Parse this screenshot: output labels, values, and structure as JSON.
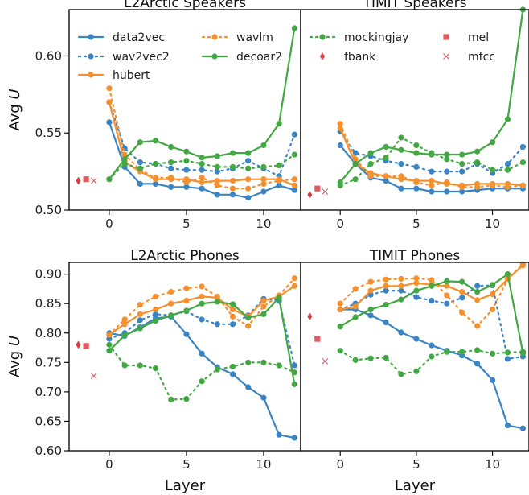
{
  "chart_data": [
    {
      "type": "line",
      "title": "L2Arctic Speakers",
      "xlabel": "",
      "ylabel": "Avg U",
      "ylim": [
        0.5,
        0.63
      ],
      "yticks": [
        0.5,
        0.55,
        0.6
      ],
      "ytick_labels": [
        "0.50",
        "0.55",
        "0.60"
      ],
      "xlim": [
        -2.6,
        12.4
      ],
      "xticks": [
        0,
        5,
        10
      ],
      "xtick_labels": [
        "0",
        "5",
        "10"
      ],
      "x": [
        0,
        1,
        2,
        3,
        4,
        5,
        6,
        7,
        8,
        9,
        10,
        11,
        12
      ],
      "series": [
        {
          "name": "data2vec",
          "values": [
            0.557,
            0.528,
            0.517,
            0.517,
            0.515,
            0.515,
            0.514,
            0.51,
            0.51,
            0.508,
            0.512,
            0.516,
            0.513
          ]
        },
        {
          "name": "wav2vec2",
          "values": [
            0.57,
            0.54,
            0.531,
            0.53,
            0.527,
            0.526,
            0.526,
            0.525,
            0.527,
            0.532,
            0.527,
            0.522,
            0.549
          ]
        },
        {
          "name": "hubert",
          "values": [
            0.57,
            0.531,
            0.525,
            0.52,
            0.52,
            0.52,
            0.518,
            0.519,
            0.519,
            0.52,
            0.52,
            0.52,
            0.516
          ]
        },
        {
          "name": "wavlm",
          "values": [
            0.579,
            0.536,
            0.526,
            0.521,
            0.521,
            0.518,
            0.521,
            0.516,
            0.514,
            0.514,
            0.517,
            0.519,
            0.52
          ]
        },
        {
          "name": "decoar2",
          "values": [
            0.52,
            0.533,
            0.544,
            0.545,
            0.541,
            0.538,
            0.534,
            0.535,
            0.537,
            0.537,
            0.542,
            0.556,
            0.618
          ]
        },
        {
          "name": "mockingjay",
          "values": [
            0.52,
            0.53,
            0.527,
            0.53,
            0.531,
            0.532,
            0.53,
            0.528,
            0.528,
            0.527,
            0.528,
            0.529,
            0.536
          ]
        }
      ],
      "singles": [
        {
          "name": "fbank",
          "x": -2.0,
          "value": 0.519
        },
        {
          "name": "mel",
          "x": -1.5,
          "value": 0.52
        },
        {
          "name": "mfcc",
          "x": -1.0,
          "value": 0.519
        }
      ],
      "legend": {
        "placement": "top",
        "entries": [
          "data2vec",
          "wavlm",
          "wav2vec2",
          "decoar2",
          "hubert"
        ]
      }
    },
    {
      "type": "line",
      "title": "TIMIT Speakers",
      "xlabel": "",
      "ylabel": "",
      "ylim": [
        0.5,
        0.63
      ],
      "xlim": [
        -2.6,
        12.4
      ],
      "xticks": [
        0,
        5,
        10
      ],
      "xtick_labels": [
        "0",
        "5",
        "10"
      ],
      "x": [
        0,
        1,
        2,
        3,
        4,
        5,
        6,
        7,
        8,
        9,
        10,
        11,
        12
      ],
      "series": [
        {
          "name": "data2vec",
          "values": [
            0.542,
            0.53,
            0.521,
            0.519,
            0.514,
            0.514,
            0.512,
            0.512,
            0.512,
            0.513,
            0.514,
            0.514,
            0.514
          ]
        },
        {
          "name": "wav2vec2",
          "values": [
            0.551,
            0.537,
            0.535,
            0.532,
            0.53,
            0.528,
            0.525,
            0.525,
            0.525,
            0.53,
            0.524,
            0.53,
            0.541
          ]
        },
        {
          "name": "hubert",
          "values": [
            0.553,
            0.53,
            0.524,
            0.522,
            0.52,
            0.519,
            0.519,
            0.517,
            0.516,
            0.517,
            0.517,
            0.517,
            0.516
          ]
        },
        {
          "name": "wavlm",
          "values": [
            0.556,
            0.533,
            0.522,
            0.522,
            0.522,
            0.518,
            0.516,
            0.518,
            0.515,
            0.515,
            0.516,
            0.515,
            0.516
          ]
        },
        {
          "name": "decoar2",
          "values": [
            0.518,
            0.53,
            0.537,
            0.541,
            0.539,
            0.537,
            0.536,
            0.536,
            0.536,
            0.538,
            0.544,
            0.559,
            0.63
          ]
        },
        {
          "name": "mockingjay",
          "values": [
            0.516,
            0.52,
            0.53,
            0.534,
            0.547,
            0.542,
            0.537,
            0.533,
            0.53,
            0.531,
            0.526,
            0.526,
            0.531
          ]
        }
      ],
      "singles": [
        {
          "name": "fbank",
          "x": -2.0,
          "value": 0.51
        },
        {
          "name": "mel",
          "x": -1.5,
          "value": 0.514
        },
        {
          "name": "mfcc",
          "x": -1.0,
          "value": 0.512
        }
      ],
      "legend": {
        "placement": "top",
        "entries": [
          "mockingjay",
          "mel",
          "fbank",
          "mfcc"
        ]
      }
    },
    {
      "type": "line",
      "title": "L2Arctic Phones",
      "xlabel": "Layer",
      "ylabel": "Avg U",
      "ylim": [
        0.6,
        0.92
      ],
      "yticks": [
        0.6,
        0.65,
        0.7,
        0.75,
        0.8,
        0.85,
        0.9
      ],
      "ytick_labels": [
        "0.60",
        "0.65",
        "0.70",
        "0.75",
        "0.80",
        "0.85",
        "0.90"
      ],
      "xlim": [
        -2.6,
        12.4
      ],
      "xticks": [
        0,
        5,
        10
      ],
      "xtick_labels": [
        "0",
        "5",
        "10"
      ],
      "x": [
        0,
        1,
        2,
        3,
        4,
        5,
        6,
        7,
        8,
        9,
        10,
        11,
        12
      ],
      "series": [
        {
          "name": "data2vec",
          "values": [
            0.8,
            0.795,
            0.81,
            0.825,
            0.828,
            0.798,
            0.765,
            0.742,
            0.73,
            0.708,
            0.69,
            0.627,
            0.622
          ]
        },
        {
          "name": "wav2vec2",
          "values": [
            0.79,
            0.8,
            0.822,
            0.832,
            0.83,
            0.837,
            0.823,
            0.815,
            0.815,
            0.83,
            0.858,
            0.855,
            0.745
          ]
        },
        {
          "name": "hubert",
          "values": [
            0.797,
            0.815,
            0.832,
            0.84,
            0.85,
            0.855,
            0.862,
            0.86,
            0.84,
            0.828,
            0.855,
            0.862,
            0.88
          ]
        },
        {
          "name": "wavlm",
          "values": [
            0.797,
            0.823,
            0.848,
            0.862,
            0.87,
            0.876,
            0.879,
            0.862,
            0.828,
            0.812,
            0.845,
            0.864,
            0.893
          ]
        },
        {
          "name": "decoar2",
          "values": [
            0.77,
            0.796,
            0.808,
            0.821,
            0.83,
            0.838,
            0.85,
            0.853,
            0.849,
            0.826,
            0.832,
            0.86,
            0.713
          ]
        },
        {
          "name": "mockingjay",
          "values": [
            0.78,
            0.745,
            0.745,
            0.74,
            0.687,
            0.688,
            0.718,
            0.738,
            0.743,
            0.75,
            0.75,
            0.745,
            0.733
          ]
        }
      ],
      "singles": [
        {
          "name": "fbank",
          "x": -2.0,
          "value": 0.78
        },
        {
          "name": "mel",
          "x": -1.5,
          "value": 0.778
        },
        {
          "name": "mfcc",
          "x": -1.0,
          "value": 0.727
        }
      ]
    },
    {
      "type": "line",
      "title": "TIMIT Phones",
      "xlabel": "Layer",
      "ylabel": "",
      "ylim": [
        0.6,
        0.92
      ],
      "xlim": [
        -2.6,
        12.4
      ],
      "xticks": [
        0,
        5,
        10
      ],
      "xtick_labels": [
        "0",
        "5",
        "10"
      ],
      "x": [
        0,
        1,
        2,
        3,
        4,
        5,
        6,
        7,
        8,
        9,
        10,
        11,
        12
      ],
      "series": [
        {
          "name": "data2vec",
          "values": [
            0.84,
            0.84,
            0.83,
            0.818,
            0.801,
            0.79,
            0.779,
            0.77,
            0.762,
            0.748,
            0.72,
            0.643,
            0.638
          ]
        },
        {
          "name": "wav2vec2",
          "values": [
            0.84,
            0.85,
            0.865,
            0.872,
            0.872,
            0.861,
            0.855,
            0.85,
            0.86,
            0.88,
            0.881,
            0.756,
            0.76
          ]
        },
        {
          "name": "hubert",
          "values": [
            0.84,
            0.845,
            0.872,
            0.88,
            0.88,
            0.885,
            0.882,
            0.88,
            0.87,
            0.856,
            0.866,
            0.892,
            0.915
          ]
        },
        {
          "name": "wavlm",
          "values": [
            0.85,
            0.875,
            0.887,
            0.891,
            0.892,
            0.893,
            0.89,
            0.864,
            0.835,
            0.812,
            0.84,
            0.892,
            0.917
          ]
        },
        {
          "name": "decoar2",
          "values": [
            0.811,
            0.827,
            0.84,
            0.848,
            0.857,
            0.872,
            0.88,
            0.888,
            0.887,
            0.87,
            0.882,
            0.9,
            0.766
          ]
        },
        {
          "name": "mockingjay",
          "values": [
            0.77,
            0.754,
            0.757,
            0.758,
            0.73,
            0.735,
            0.76,
            0.768,
            0.768,
            0.771,
            0.765,
            0.767,
            0.768
          ]
        }
      ],
      "singles": [
        {
          "name": "fbank",
          "x": -2.0,
          "value": 0.828
        },
        {
          "name": "mel",
          "x": -1.5,
          "value": 0.79
        },
        {
          "name": "mfcc",
          "x": -1.0,
          "value": 0.752
        }
      ]
    }
  ],
  "styles": {
    "data2vec": {
      "color": "#3b84c4",
      "dash": "solid",
      "marker": "circle"
    },
    "wav2vec2": {
      "color": "#3b84c4",
      "dash": "dotted",
      "marker": "circle"
    },
    "hubert": {
      "color": "#f5902e",
      "dash": "solid",
      "marker": "circle"
    },
    "wavlm": {
      "color": "#f5902e",
      "dash": "dotted",
      "marker": "circle"
    },
    "decoar2": {
      "color": "#43a843",
      "dash": "solid",
      "marker": "circle"
    },
    "mockingjay": {
      "color": "#43a843",
      "dash": "dotted",
      "marker": "circle"
    },
    "fbank": {
      "color": "#d93f47",
      "marker": "diamond"
    },
    "mel": {
      "color": "#e05a5f",
      "marker": "square"
    },
    "mfcc": {
      "color": "#e05a5f",
      "marker": "x"
    }
  }
}
